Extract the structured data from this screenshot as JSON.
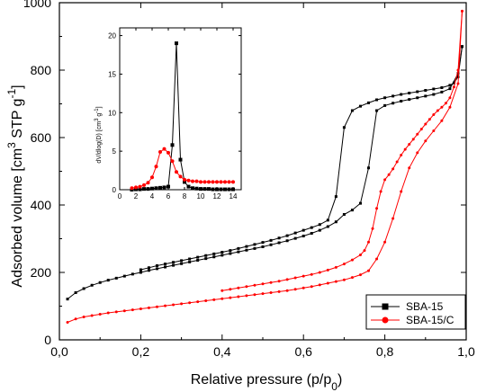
{
  "chart_data": [
    {
      "type": "line",
      "role": "main",
      "xlabel": "Relative pressure (p/p",
      "xlabel_sub": "0",
      "xlabel_end": ")",
      "ylabel": "Adsorbed volume [cm",
      "ylabel_sup1": "3",
      "ylabel_mid": " STP g",
      "ylabel_sup2": "-1",
      "ylabel_end": "]",
      "xlim": [
        0.0,
        1.0
      ],
      "ylim": [
        0,
        1000
      ],
      "xticks": [
        0.0,
        0.2,
        0.4,
        0.6,
        0.8,
        1.0
      ],
      "xtick_labels": [
        "0,0",
        "0,2",
        "0,4",
        "0,6",
        "0,8",
        "1,0"
      ],
      "yticks": [
        0,
        200,
        400,
        600,
        800,
        1000
      ],
      "ytick_labels": [
        "0",
        "200",
        "400",
        "600",
        "800",
        "1000"
      ],
      "legend_position": "bottom-right",
      "series": [
        {
          "name": "SBA-15",
          "color": "#000000",
          "marker": "square",
          "adsorption": {
            "x": [
              0.02,
              0.04,
              0.06,
              0.08,
              0.1,
              0.12,
              0.14,
              0.16,
              0.18,
              0.2,
              0.22,
              0.24,
              0.26,
              0.28,
              0.3,
              0.32,
              0.34,
              0.36,
              0.38,
              0.4,
              0.42,
              0.44,
              0.46,
              0.48,
              0.5,
              0.52,
              0.54,
              0.56,
              0.58,
              0.6,
              0.62,
              0.64,
              0.66,
              0.68,
              0.7,
              0.72,
              0.74,
              0.76,
              0.78,
              0.8,
              0.82,
              0.84,
              0.86,
              0.88,
              0.9,
              0.92,
              0.94,
              0.96,
              0.98,
              0.99
            ],
            "y": [
              121,
              140,
              152,
              162,
              170,
              177,
              183,
              189,
              195,
              200,
              206,
              211,
              216,
              221,
              226,
              231,
              236,
              241,
              246,
              251,
              256,
              261,
              266,
              271,
              276,
              282,
              288,
              294,
              301,
              308,
              316,
              325,
              336,
              350,
              372,
              385,
              405,
              510,
              680,
              695,
              702,
              708,
              713,
              718,
              723,
              728,
              735,
              745,
              790,
              870
            ]
          },
          "desorption": {
            "x": [
              0.99,
              0.98,
              0.97,
              0.96,
              0.94,
              0.92,
              0.9,
              0.88,
              0.86,
              0.84,
              0.82,
              0.8,
              0.78,
              0.76,
              0.74,
              0.72,
              0.7,
              0.68,
              0.66,
              0.64,
              0.62,
              0.6,
              0.58,
              0.56,
              0.54,
              0.52,
              0.5,
              0.48,
              0.46,
              0.44,
              0.42,
              0.4,
              0.38,
              0.36,
              0.34,
              0.32,
              0.3,
              0.28,
              0.26,
              0.24,
              0.22,
              0.2
            ],
            "y": [
              870,
              780,
              762,
              755,
              748,
              744,
              740,
              736,
              732,
              728,
              723,
              718,
              712,
              703,
              693,
              680,
              630,
              425,
              355,
              342,
              333,
              325,
              317,
              309,
              302,
              295,
              289,
              283,
              277,
              271,
              265,
              260,
              255,
              250,
              245,
              240,
              235,
              230,
              225,
              220,
              214,
              208
            ]
          }
        },
        {
          "name": "SBA-15/C",
          "color": "#ff0000",
          "marker": "circle",
          "adsorption": {
            "x": [
              0.02,
              0.04,
              0.06,
              0.08,
              0.1,
              0.12,
              0.14,
              0.16,
              0.18,
              0.2,
              0.22,
              0.24,
              0.26,
              0.28,
              0.3,
              0.32,
              0.34,
              0.36,
              0.38,
              0.4,
              0.42,
              0.44,
              0.46,
              0.48,
              0.5,
              0.52,
              0.54,
              0.56,
              0.58,
              0.6,
              0.62,
              0.64,
              0.66,
              0.68,
              0.7,
              0.72,
              0.74,
              0.76,
              0.78,
              0.8,
              0.82,
              0.84,
              0.86,
              0.88,
              0.9,
              0.92,
              0.94,
              0.96,
              0.98,
              0.99
            ],
            "y": [
              52,
              62,
              68,
              72,
              76,
              80,
              83,
              86,
              89,
              92,
              95,
              98,
              101,
              104,
              107,
              110,
              113,
              116,
              119,
              122,
              125,
              128,
              131,
              134,
              137,
              140,
              143,
              146,
              150,
              154,
              158,
              163,
              168,
              173,
              178,
              185,
              193,
              205,
              240,
              290,
              360,
              440,
              510,
              555,
              590,
              620,
              650,
              690,
              760,
              975
            ]
          },
          "desorption": {
            "x": [
              0.99,
              0.98,
              0.97,
              0.96,
              0.95,
              0.94,
              0.93,
              0.92,
              0.91,
              0.9,
              0.89,
              0.88,
              0.87,
              0.86,
              0.85,
              0.84,
              0.83,
              0.82,
              0.81,
              0.8,
              0.79,
              0.78,
              0.77,
              0.76,
              0.75,
              0.74,
              0.72,
              0.7,
              0.68,
              0.66,
              0.64,
              0.62,
              0.6,
              0.58,
              0.56,
              0.54,
              0.52,
              0.5,
              0.48,
              0.46,
              0.44,
              0.42,
              0.4
            ],
            "y": [
              975,
              800,
              750,
              718,
              702,
              690,
              680,
              668,
              654,
              640,
              625,
              610,
              595,
              580,
              565,
              548,
              528,
              507,
              490,
              475,
              440,
              390,
              330,
              290,
              265,
              252,
              237,
              225,
              215,
              207,
              200,
              194,
              189,
              184,
              179,
              174,
              170,
              166,
              162,
              158,
              154,
              150,
              146
            ]
          }
        }
      ]
    },
    {
      "type": "line",
      "role": "inset",
      "ylabel": "dV/dlog(D) [cm",
      "ylabel_sup1": "3",
      "ylabel_mid": " g",
      "ylabel_sup2": "-1",
      "ylabel_end": "]",
      "xlim": [
        0,
        15
      ],
      "ylim": [
        0,
        21
      ],
      "xticks": [
        0,
        2,
        4,
        6,
        8,
        10,
        12,
        14
      ],
      "xtick_labels": [
        "0",
        "2",
        "4",
        "6",
        "8",
        "10",
        "12",
        "14"
      ],
      "yticks": [
        0,
        5,
        10,
        15,
        20
      ],
      "ytick_labels": [
        "0",
        "5",
        "10",
        "15",
        "20"
      ],
      "series": [
        {
          "name": "SBA-15",
          "color": "#000000",
          "marker": "square",
          "x": [
            1.5,
            2.0,
            2.5,
            3.0,
            3.5,
            4.0,
            4.5,
            5.0,
            5.5,
            6.0,
            6.5,
            7.0,
            7.5,
            8.0,
            8.5,
            9.0,
            9.5,
            10.0,
            10.5,
            11.0,
            11.5,
            12.0,
            12.5,
            13.0,
            13.5,
            14.0
          ],
          "y": [
            0.0,
            0.05,
            0.05,
            0.1,
            0.1,
            0.15,
            0.2,
            0.25,
            0.3,
            0.4,
            5.8,
            19.0,
            3.9,
            1.0,
            0.4,
            0.2,
            0.15,
            0.1,
            0.1,
            0.1,
            0.05,
            0.05,
            0.05,
            0.05,
            0.05,
            0.05
          ]
        },
        {
          "name": "SBA-15/C",
          "color": "#ff0000",
          "marker": "circle",
          "x": [
            1.5,
            2.0,
            2.5,
            3.0,
            3.5,
            4.0,
            4.5,
            5.0,
            5.5,
            6.0,
            6.5,
            7.0,
            7.5,
            8.0,
            8.5,
            9.0,
            9.5,
            10.0,
            10.5,
            11.0,
            11.5,
            12.0,
            12.5,
            13.0,
            13.5,
            14.0
          ],
          "y": [
            0.2,
            0.3,
            0.4,
            0.6,
            0.9,
            1.6,
            3.0,
            4.9,
            5.3,
            4.8,
            3.7,
            2.3,
            1.7,
            1.3,
            1.2,
            1.1,
            1.1,
            1.0,
            1.0,
            1.0,
            1.0,
            1.0,
            1.0,
            1.0,
            1.0,
            1.0
          ]
        }
      ]
    }
  ]
}
